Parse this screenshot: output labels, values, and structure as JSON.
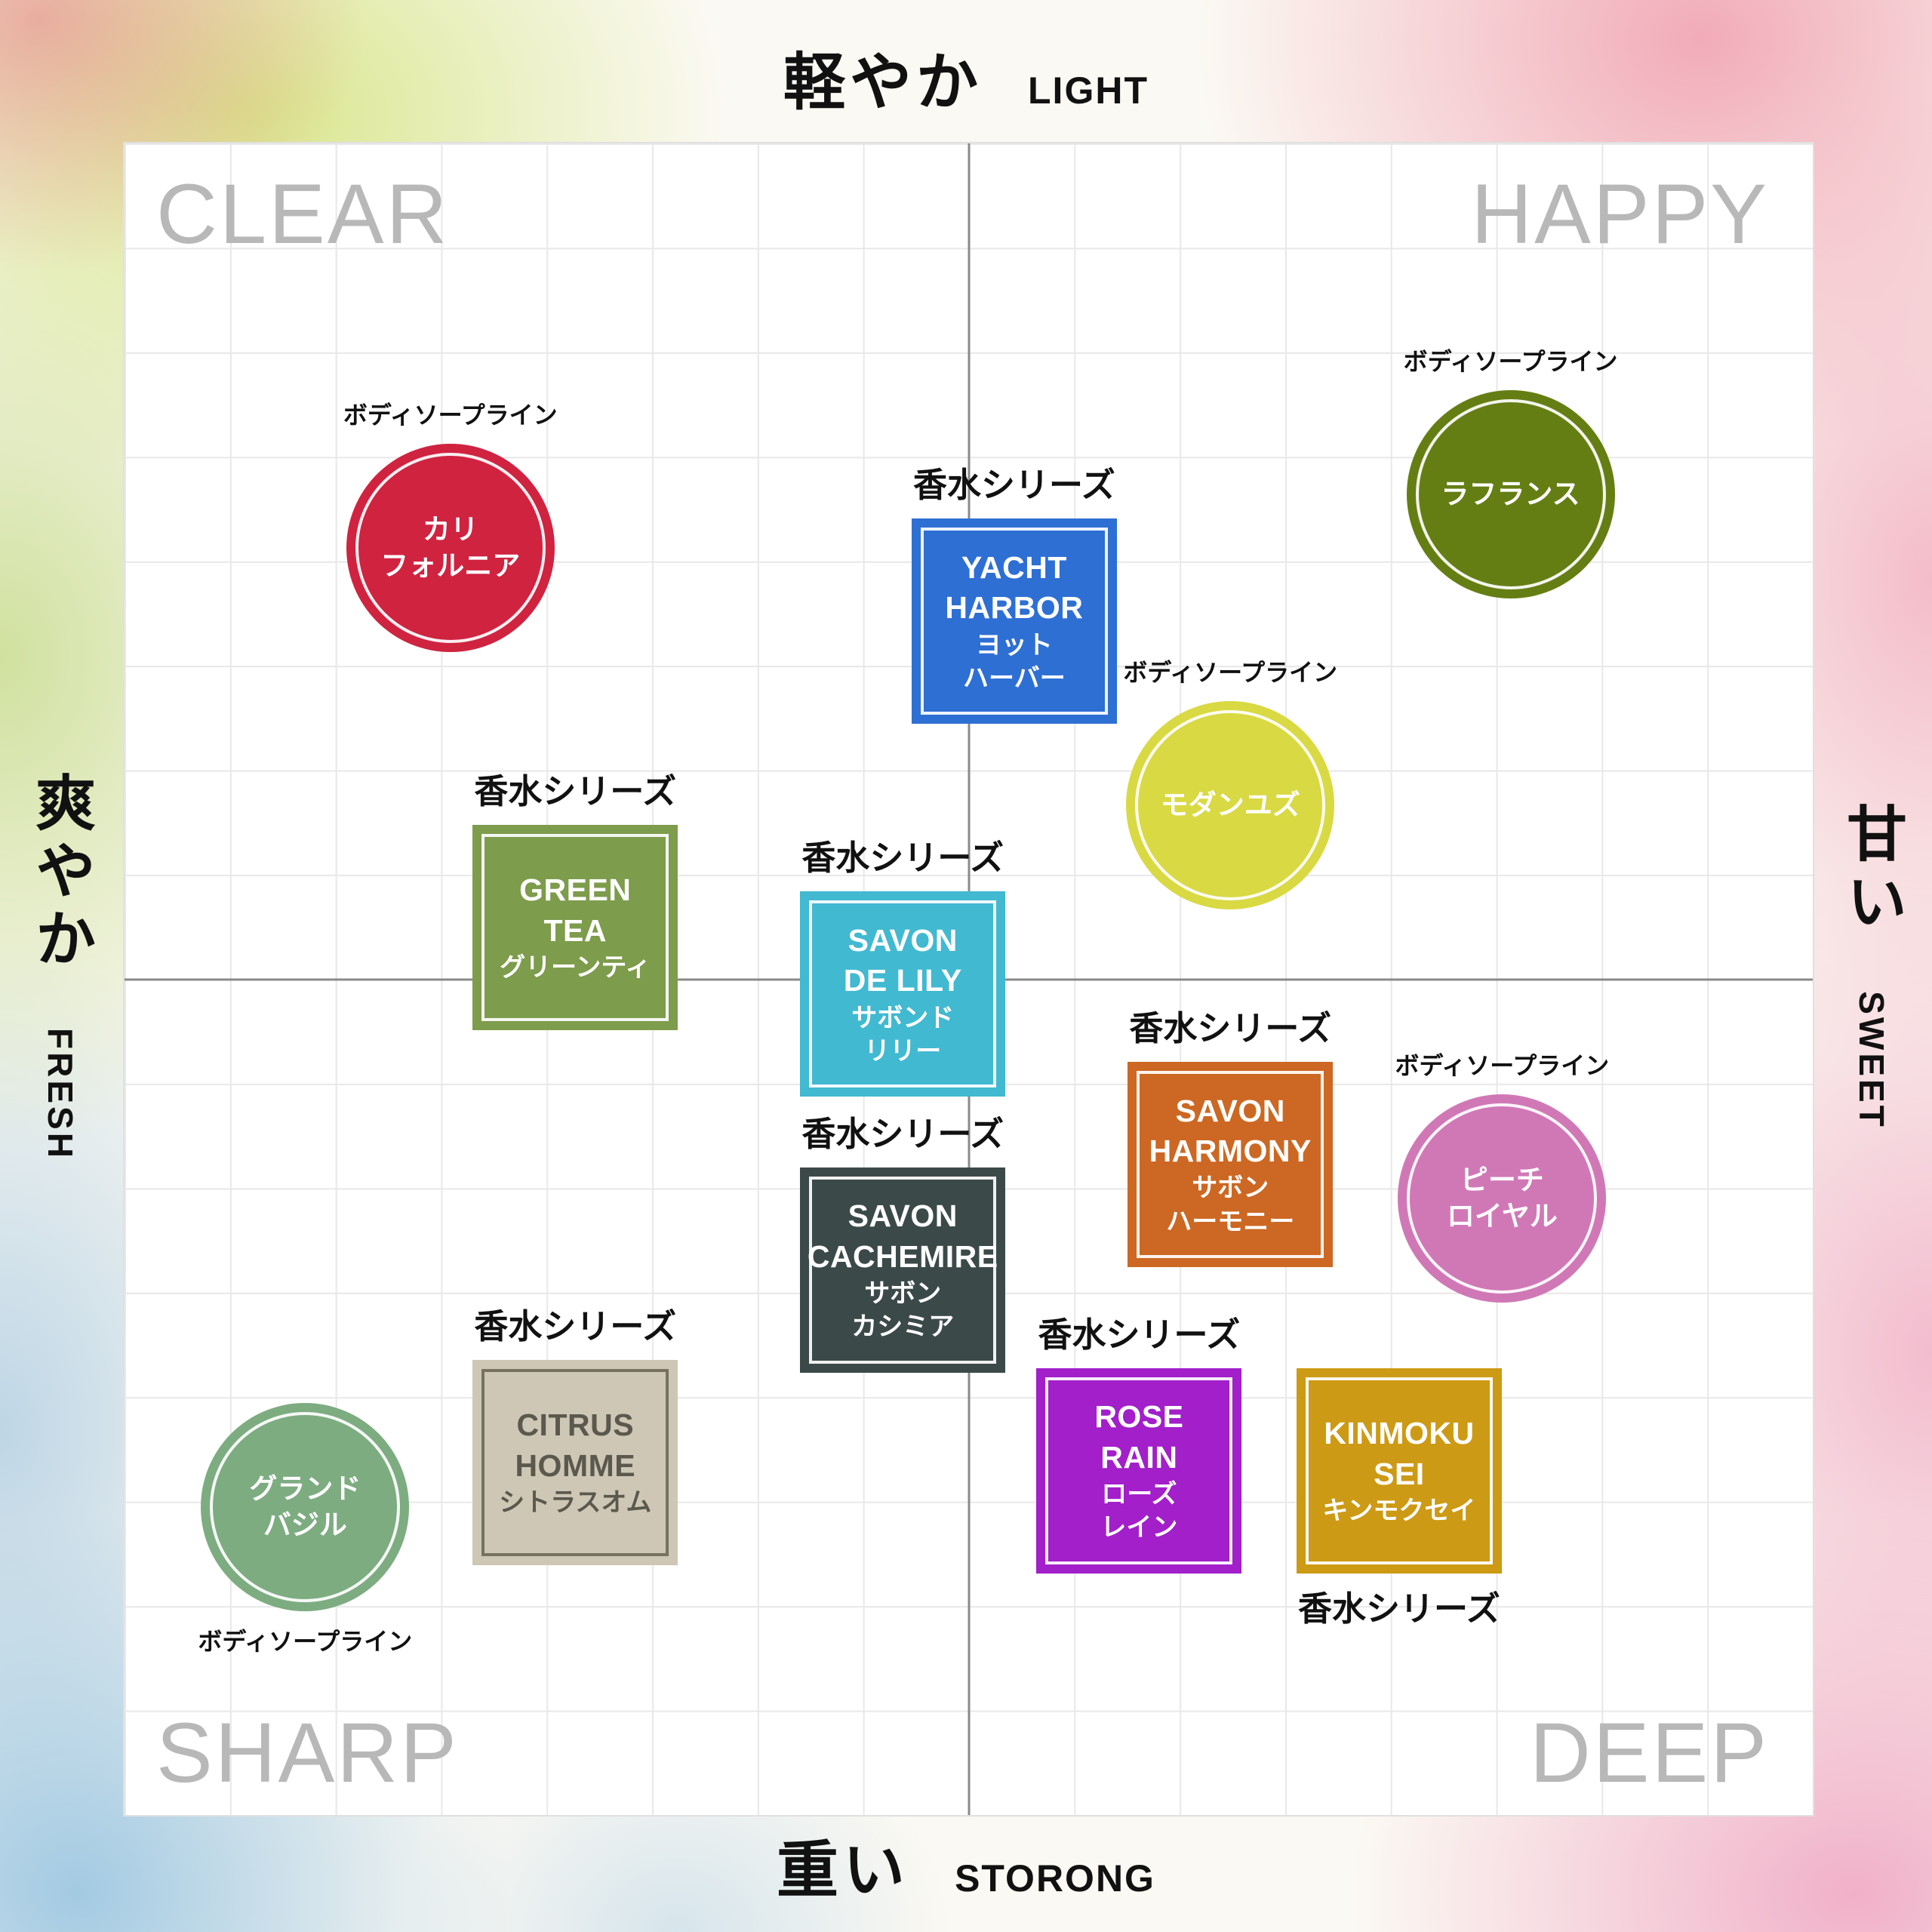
{
  "axes": {
    "top": {
      "jp": "軽やか",
      "en": "LIGHT"
    },
    "bottom": {
      "jp": "重い",
      "en": "STORONG"
    },
    "left": {
      "jp": "爽やか",
      "en": "FRESH"
    },
    "right": {
      "jp": "甘い",
      "en": "SWEET"
    }
  },
  "quadrants": {
    "top_left": "CLEAR",
    "top_right": "HAPPY",
    "bottom_left": "SHARP",
    "bottom_right": "DEEP"
  },
  "categories": {
    "perfume": "香水シリーズ",
    "bodysoap": "ボディソープライン"
  },
  "chart_data": {
    "type": "scatter",
    "title": "",
    "x_axis": {
      "left_label": "爽やか FRESH",
      "right_label": "甘い SWEET"
    },
    "y_axis": {
      "top_label": "軽やか LIGHT",
      "bottom_label": "重い STORONG"
    },
    "quadrant_labels": [
      "CLEAR",
      "HAPPY",
      "SHARP",
      "DEEP"
    ],
    "legend": {
      "square": "香水シリーズ",
      "circle": "ボディソープライン"
    },
    "points": [
      {
        "id": "california",
        "name": "カリフォルニア",
        "shape": "circle",
        "category_key": "bodysoap",
        "label_position": "above",
        "color": "#cf2340",
        "text_color": "#ffffff",
        "x": 0.193,
        "y": 0.242,
        "lines": [
          "カリ",
          "フォルニア"
        ]
      },
      {
        "id": "lafrance",
        "name": "ラフランス",
        "shape": "circle",
        "category_key": "bodysoap",
        "label_position": "above",
        "color": "#657e14",
        "text_color": "#ffffff",
        "x": 0.821,
        "y": 0.21,
        "lines": [
          "ラフランス"
        ]
      },
      {
        "id": "yacht-harbor",
        "name": "YACHT HARBOR ヨットハーバー",
        "shape": "square",
        "category_key": "perfume",
        "label_position": "above",
        "color": "#2e6fd4",
        "text_color": "#ffffff",
        "x": 0.527,
        "y": 0.286,
        "lines": [
          "YACHT",
          "HARBOR",
          "ヨット",
          "ハーバー"
        ]
      },
      {
        "id": "modern-yuzu",
        "name": "モダンユズ",
        "shape": "circle",
        "category_key": "bodysoap",
        "label_position": "above",
        "color": "#d9d943",
        "text_color": "#ffffff",
        "x": 0.655,
        "y": 0.396,
        "lines": [
          "モダンユズ"
        ]
      },
      {
        "id": "green-tea",
        "name": "GREEN TEA グリーンティ",
        "shape": "square",
        "category_key": "perfume",
        "label_position": "above",
        "color": "#7d9c4c",
        "text_color": "#ffffff",
        "x": 0.267,
        "y": 0.469,
        "lines": [
          "GREEN",
          "TEA",
          "グリーンティ"
        ]
      },
      {
        "id": "savon-de-lily",
        "name": "SAVON DE LILY サボンドリリー",
        "shape": "square",
        "category_key": "perfume",
        "label_position": "above",
        "color": "#41b9d1",
        "text_color": "#ffffff",
        "x": 0.461,
        "y": 0.509,
        "lines": [
          "SAVON",
          "DE LILY",
          "サボンド",
          "リリー"
        ]
      },
      {
        "id": "savon-harmony",
        "name": "SAVON HARMONY サボンハーモニー",
        "shape": "square",
        "category_key": "perfume",
        "label_position": "above",
        "color": "#cc6823",
        "text_color": "#ffffff",
        "x": 0.655,
        "y": 0.611,
        "lines": [
          "SAVON",
          "HARMONY",
          "サボン",
          "ハーモニー"
        ]
      },
      {
        "id": "peach-royal",
        "name": "ピーチロイヤル",
        "shape": "circle",
        "category_key": "bodysoap",
        "label_position": "above",
        "color": "#d078b6",
        "text_color": "#ffffff",
        "x": 0.816,
        "y": 0.631,
        "lines": [
          "ピーチ",
          "ロイヤル"
        ]
      },
      {
        "id": "savon-cachemire",
        "name": "SAVON CACHEMIRE サボンカシミア",
        "shape": "square",
        "category_key": "perfume",
        "label_position": "above",
        "color": "#3b4a49",
        "text_color": "#ffffff",
        "x": 0.461,
        "y": 0.674,
        "lines": [
          "SAVON",
          "CACHEMIRE",
          "サボン",
          "カシミア"
        ]
      },
      {
        "id": "citrus-homme",
        "name": "CITRUS HOMME シトラスオム",
        "shape": "square",
        "category_key": "perfume",
        "label_position": "above",
        "color": "#cec7b6",
        "text_color": "#5b584d",
        "ring_color": "#77725f",
        "x": 0.267,
        "y": 0.789,
        "lines": [
          "CITRUS",
          "HOMME",
          "シトラスオム"
        ]
      },
      {
        "id": "grand-basil",
        "name": "グランドバジル",
        "shape": "circle",
        "category_key": "bodysoap",
        "label_position": "below",
        "color": "#7dac81",
        "text_color": "#ffffff",
        "x": 0.107,
        "y": 0.816,
        "lines": [
          "グランド",
          "バジル"
        ]
      },
      {
        "id": "rose-rain",
        "name": "ROSE RAIN ローズレイン",
        "shape": "square",
        "category_key": "perfume",
        "label_position": "above",
        "color": "#a21fca",
        "text_color": "#ffffff",
        "x": 0.601,
        "y": 0.794,
        "lines": [
          "ROSE",
          "RAIN",
          "ローズ",
          "レイン"
        ]
      },
      {
        "id": "kinmokusei",
        "name": "KINMOKUSEI キンモクセイ",
        "shape": "square",
        "category_key": "perfume",
        "label_position": "below",
        "color": "#cd9a15",
        "text_color": "#ffffff",
        "x": 0.755,
        "y": 0.794,
        "lines": [
          "KINMOKU",
          "SEI",
          "キンモクセイ"
        ]
      }
    ]
  }
}
